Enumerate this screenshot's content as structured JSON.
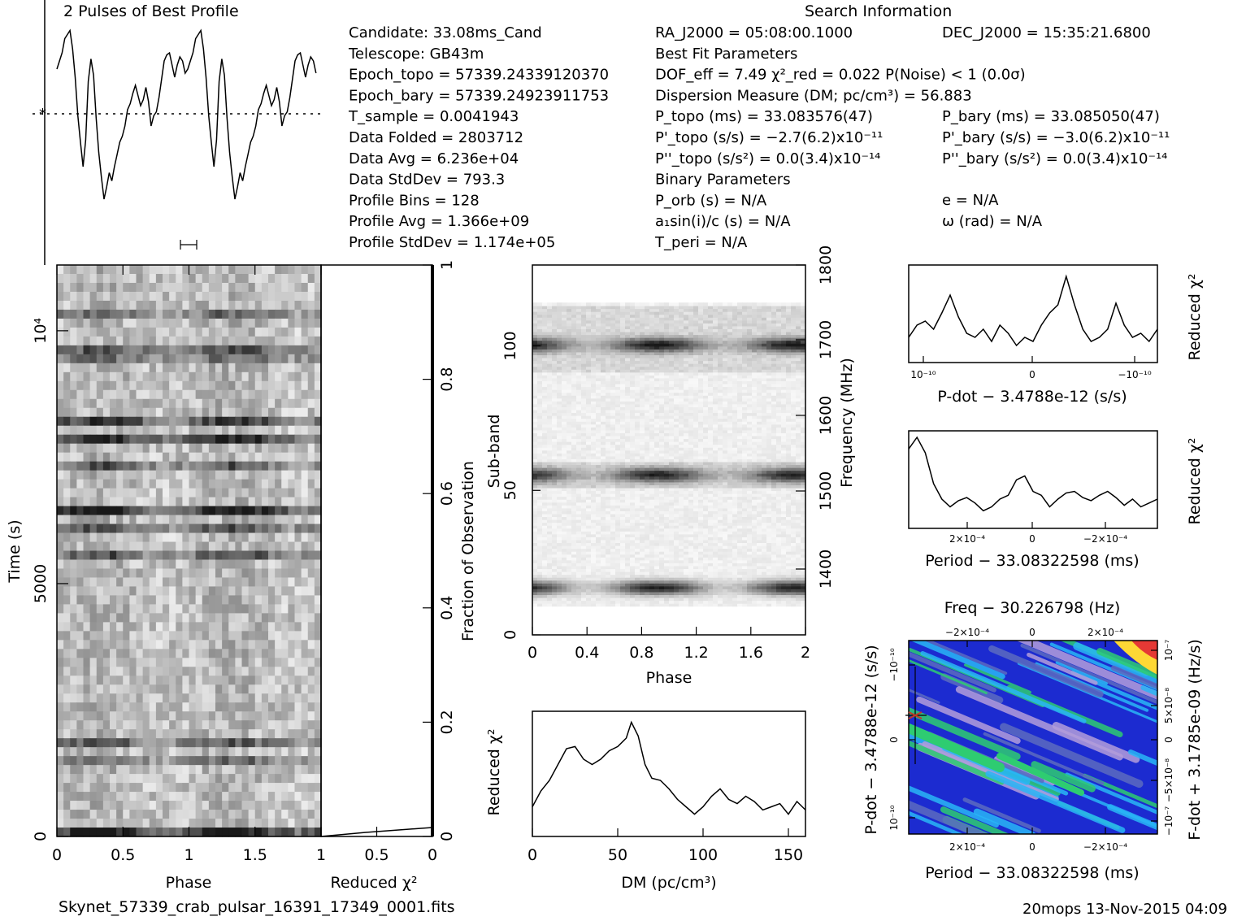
{
  "header": {
    "profile_title": "2 Pulses of Best Profile",
    "search_title": "Search Information",
    "footer_file": "Skynet_57339_crab_pulsar_16391_17349_0001.fits",
    "footer_stamp": "20mops 13-Nov-2015 04:09"
  },
  "info_col1": [
    "Candidate:  33.08ms_Cand",
    "Telescope:  GB43m",
    "Epoch_topo = 57339.24339120370",
    "Epoch_bary = 57339.24923911753",
    "T_sample      =  0.0041943",
    "Data Folded    =  2803712",
    "Data Avg       =  6.236e+04",
    "Data StdDev    =  793.3",
    "Profile Bins   =  128",
    "Profile Avg    =  1.366e+09",
    "Profile StdDev =  1.174e+05"
  ],
  "info_col2": [
    "RA_J2000 = 05:08:00.1000",
    "Best Fit Parameters",
    "DOF_eff = 7.49  χ²_red = 0.022  P(Noise) < 1  (0.0σ)",
    "Dispersion Measure (DM; pc/cm³) = 56.883",
    "P_topo (ms) =  33.083576(47)",
    "P'_topo (s/s) = −2.7(6.2)x10⁻¹¹",
    "P''_topo (s/s²) = 0.0(3.4)x10⁻¹⁴",
    "Binary Parameters",
    "P_orb (s) = N/A",
    "a₁sin(i)/c (s) = N/A",
    "T_peri = N/A"
  ],
  "info_col3": [
    "DEC_J2000 = 15:35:21.6800",
    "P_bary (ms) =  33.085050(47)",
    "P'_bary (s/s) = −3.0(6.2)x10⁻¹¹",
    "P''_bary (s/s²) = 0.0(3.4)x10⁻¹⁴",
    "e = N/A",
    "ω (rad) = N/A"
  ],
  "axes": {
    "phase_label": "Phase",
    "redchi_label": "Reduced χ²",
    "time_label": "Time (s)",
    "fraction_label": "Fraction of Observation",
    "subband_label": "Sub-band",
    "freq_label": "Frequency (MHz)",
    "dm_label": "DM (pc/cm³)",
    "pdot_label": "P-dot − 3.4788e-12 (s/s)",
    "period_label": "Period − 33.08322598 (ms)",
    "freq_top_label": "Freq − 30.226798 (Hz)",
    "pdot_left_label": "P-dot − 3.4788e-12 (s/s)",
    "fdot_right_label": "F-dot + 3.1785e-09 (Hz/s)"
  },
  "chart_data": [
    {
      "name": "profile",
      "type": "line",
      "title": "2 Pulses of Best Profile",
      "x": [
        0,
        0.02,
        0.04,
        0.06,
        0.08,
        0.1,
        0.12,
        0.14,
        0.16,
        0.18,
        0.2,
        0.22,
        0.24,
        0.26,
        0.28,
        0.3,
        0.32,
        0.34,
        0.36,
        0.38,
        0.4,
        0.42,
        0.44,
        0.46,
        0.48,
        0.5,
        0.52,
        0.54,
        0.56,
        0.58,
        0.6,
        0.62,
        0.64,
        0.66,
        0.68,
        0.7,
        0.72,
        0.74,
        0.76,
        0.78,
        0.8,
        0.82,
        0.84,
        0.86,
        0.88,
        0.9,
        0.92,
        0.94,
        0.96,
        0.98
      ],
      "y": [
        0.78,
        0.82,
        0.86,
        0.93,
        0.95,
        0.97,
        0.88,
        0.74,
        0.55,
        0.42,
        0.3,
        0.43,
        0.72,
        0.83,
        0.75,
        0.54,
        0.37,
        0.25,
        0.14,
        0.2,
        0.27,
        0.23,
        0.3,
        0.36,
        0.42,
        0.45,
        0.5,
        0.58,
        0.61,
        0.66,
        0.7,
        0.65,
        0.6,
        0.63,
        0.69,
        0.62,
        0.5,
        0.55,
        0.57,
        0.64,
        0.73,
        0.82,
        0.85,
        0.86,
        0.8,
        0.74,
        0.8,
        0.84,
        0.82,
        0.76
      ]
    },
    {
      "name": "time_phase",
      "type": "heatmap",
      "xlabel": "Phase",
      "ylabel": "Time (s)",
      "xlim": [
        0,
        2
      ],
      "ylim": [
        0,
        11300
      ],
      "yticks": [
        0,
        5000,
        10000
      ]
    },
    {
      "name": "subband_phase",
      "type": "heatmap",
      "xlabel": "Phase",
      "ylabel": "Sub-band",
      "ylim": [
        0,
        128
      ],
      "freq_ticks": [
        1400,
        1500,
        1600,
        1700,
        1800
      ],
      "bands": [
        {
          "center": 100,
          "strength": 0.85
        },
        {
          "center": 55,
          "strength": 0.8
        },
        {
          "center": 16,
          "strength": 0.9
        }
      ]
    },
    {
      "name": "redchi_vs_time",
      "type": "line",
      "xlabel": "Reduced χ²",
      "x": [
        0,
        0.5,
        1
      ],
      "fraction_ticks": [
        0,
        0.2,
        0.4,
        0.6,
        0.8,
        1
      ]
    },
    {
      "name": "dm_curve",
      "type": "line",
      "xlabel": "DM (pc/cm³)",
      "ylabel": "Reduced χ²",
      "xlim": [
        0,
        160
      ],
      "x": [
        0,
        5,
        10,
        15,
        20,
        25,
        30,
        35,
        40,
        45,
        50,
        55,
        58,
        62,
        66,
        70,
        75,
        80,
        85,
        90,
        95,
        100,
        105,
        110,
        115,
        120,
        125,
        130,
        135,
        140,
        145,
        150,
        155,
        160
      ],
      "y": [
        0.15,
        0.3,
        0.4,
        0.55,
        0.7,
        0.72,
        0.6,
        0.55,
        0.6,
        0.68,
        0.72,
        0.8,
        0.95,
        0.82,
        0.55,
        0.42,
        0.4,
        0.32,
        0.22,
        0.15,
        0.08,
        0.15,
        0.25,
        0.32,
        0.22,
        0.18,
        0.25,
        0.2,
        0.12,
        0.15,
        0.18,
        0.08,
        0.2,
        0.12
      ]
    },
    {
      "name": "pdot_curve",
      "type": "line",
      "xlabel": "P-dot − 3.4788e-12 (s/s)",
      "ylabel": "Reduced χ²",
      "x": [
        0,
        1,
        2,
        3,
        4,
        5,
        6,
        7,
        8,
        9,
        10,
        11,
        12,
        13,
        14,
        15,
        16,
        17,
        18,
        19,
        20,
        21,
        22,
        23,
        24,
        25,
        26,
        27,
        28,
        29,
        30
      ],
      "y": [
        0.2,
        0.35,
        0.4,
        0.3,
        0.5,
        0.72,
        0.45,
        0.25,
        0.2,
        0.3,
        0.15,
        0.35,
        0.25,
        0.1,
        0.2,
        0.15,
        0.35,
        0.5,
        0.6,
        0.95,
        0.6,
        0.3,
        0.15,
        0.2,
        0.3,
        0.62,
        0.35,
        0.2,
        0.25,
        0.15,
        0.3
      ]
    },
    {
      "name": "period_curve",
      "type": "line",
      "xlabel": "Period − 33.08322598 (ms)",
      "ylabel": "Reduced χ²",
      "x": [
        0,
        1,
        2,
        3,
        4,
        5,
        6,
        7,
        8,
        9,
        10,
        11,
        12,
        13,
        14,
        15,
        16,
        17,
        18,
        19,
        20,
        21,
        22,
        23,
        24,
        25,
        26,
        27,
        28,
        29,
        30
      ],
      "y": [
        0.85,
        1.0,
        0.8,
        0.4,
        0.2,
        0.1,
        0.18,
        0.22,
        0.15,
        0.05,
        0.1,
        0.2,
        0.25,
        0.45,
        0.5,
        0.3,
        0.25,
        0.1,
        0.2,
        0.28,
        0.3,
        0.22,
        0.18,
        0.25,
        0.3,
        0.22,
        0.12,
        0.2,
        0.1,
        0.15,
        0.2
      ]
    },
    {
      "name": "period_pdot_map",
      "type": "heatmap",
      "xlabel": "Period − 33.08322598 (ms)",
      "ylabel": "P-dot − 3.4788e-12 (s/s)",
      "top_label": "Freq − 30.226798 (Hz)",
      "right_label": "F-dot + 3.1785e-09 (Hz/s)"
    }
  ],
  "colors": {
    "map_low": "#1c2bd0",
    "map_mid": "#29b6f6",
    "map_high": "#2ecc71",
    "map_peak": "#e53935",
    "map_purple": "#b39ddb"
  }
}
